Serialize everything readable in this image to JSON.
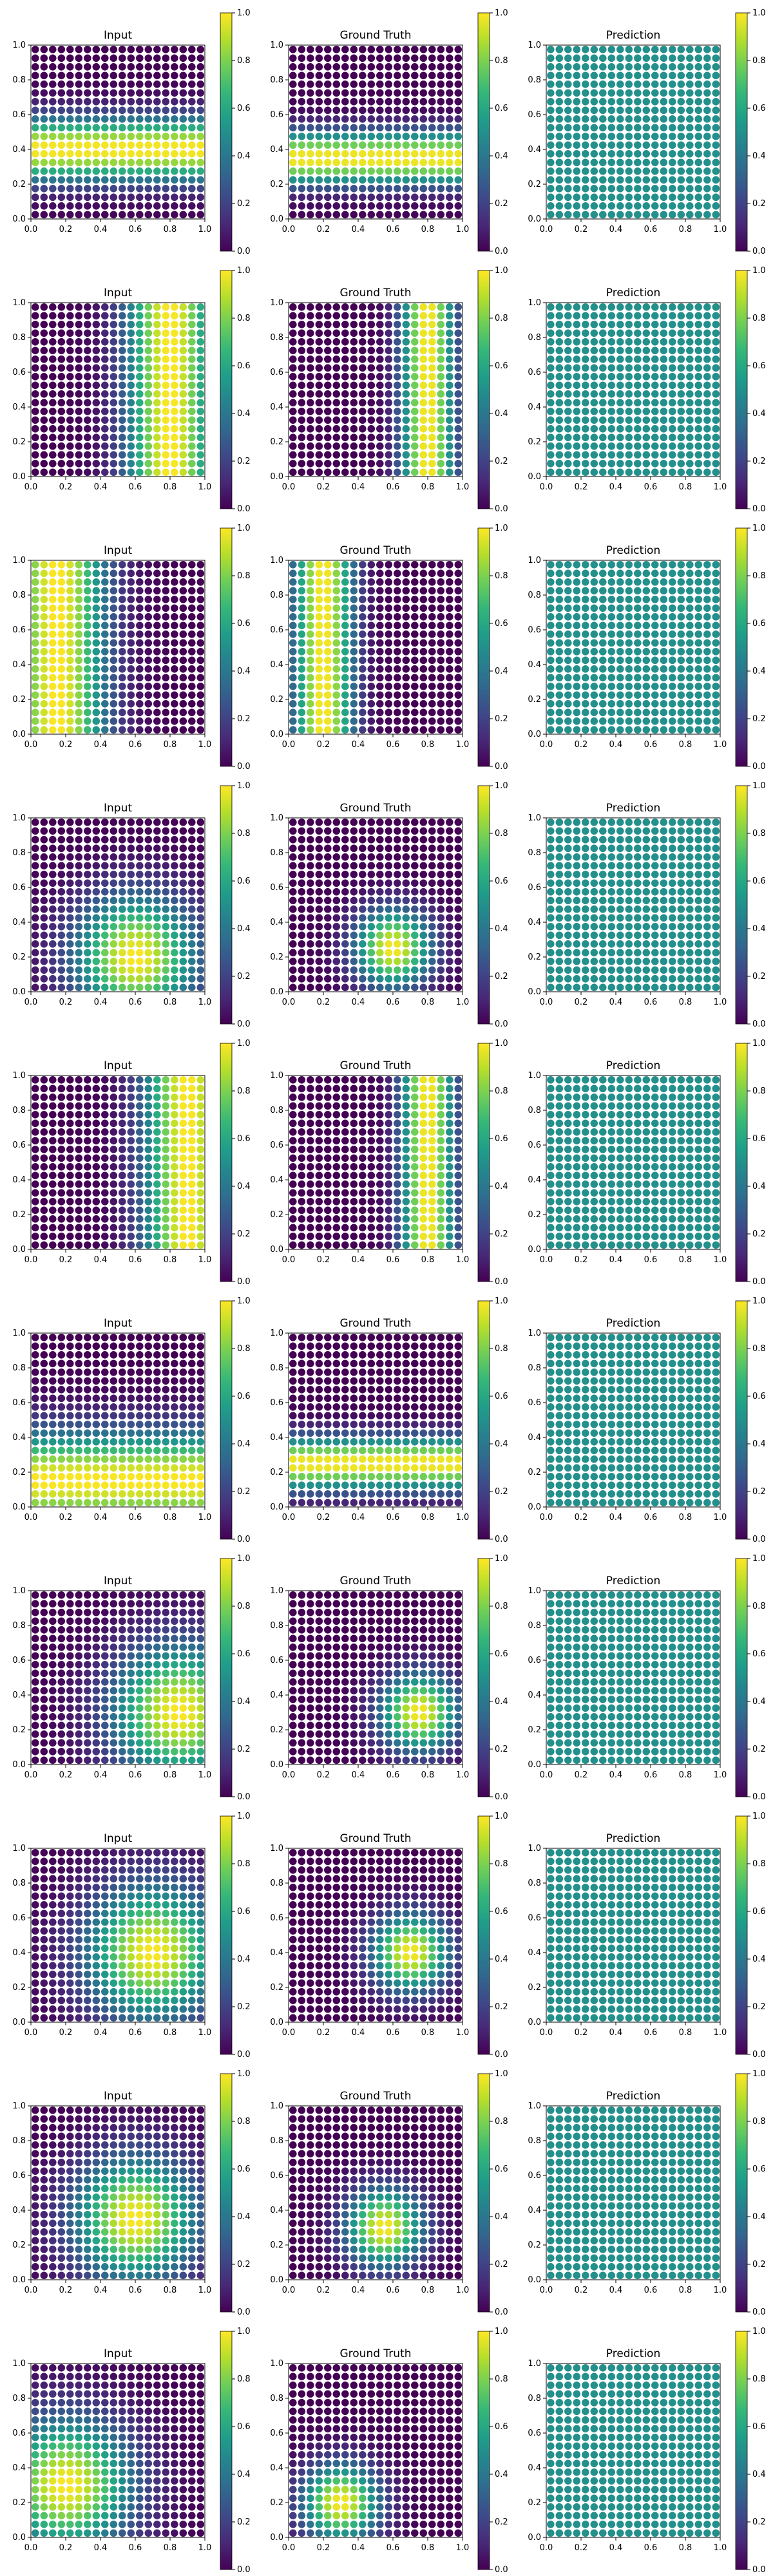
{
  "figure": {
    "colormap": "viridis",
    "colorbar_ticks": [
      "0.0",
      "0.2",
      "0.4",
      "0.6",
      "0.8",
      "1.0"
    ],
    "axis_ticks": [
      "0.0",
      "0.2",
      "0.4",
      "0.6",
      "0.8",
      "1.0"
    ]
  },
  "chart_data": [
    {
      "row": 1,
      "input": {
        "type": "scatter",
        "title": "Input",
        "field": "band-y",
        "center": [
          0.5,
          0.4
        ],
        "width": 0.18
      },
      "ground_truth": {
        "type": "scatter",
        "title": "Ground Truth",
        "field": "band-y",
        "center": [
          0.5,
          0.35
        ],
        "width": 0.15
      },
      "prediction": {
        "type": "scatter",
        "title": "Prediction",
        "field": "constant",
        "value": 0.5
      }
    },
    {
      "row": 2,
      "input": {
        "type": "scatter",
        "title": "Input",
        "field": "band-x",
        "center": [
          0.8,
          0.5
        ],
        "width": 0.25
      },
      "ground_truth": {
        "type": "scatter",
        "title": "Ground Truth",
        "field": "band-x",
        "center": [
          0.8,
          0.3
        ],
        "width": 0.15
      },
      "prediction": {
        "type": "scatter",
        "title": "Prediction",
        "field": "constant",
        "value": 0.5
      }
    },
    {
      "row": 3,
      "input": {
        "type": "scatter",
        "title": "Input",
        "field": "band-x",
        "center": [
          0.15,
          0.5
        ],
        "width": 0.28
      },
      "ground_truth": {
        "type": "scatter",
        "title": "Ground Truth",
        "field": "band-x",
        "center": [
          0.2,
          0.4
        ],
        "width": 0.17
      },
      "prediction": {
        "type": "scatter",
        "title": "Prediction",
        "field": "constant",
        "value": 0.5
      }
    },
    {
      "row": 4,
      "input": {
        "type": "scatter",
        "title": "Input",
        "field": "blob",
        "center": [
          0.6,
          0.2
        ],
        "width": 0.35
      },
      "ground_truth": {
        "type": "scatter",
        "title": "Ground Truth",
        "field": "blob",
        "center": [
          0.6,
          0.25
        ],
        "width": 0.22
      },
      "prediction": {
        "type": "scatter",
        "title": "Prediction",
        "field": "constant",
        "value": 0.5
      }
    },
    {
      "row": 5,
      "input": {
        "type": "scatter",
        "title": "Input",
        "field": "band-x",
        "center": [
          0.9,
          0.5
        ],
        "width": 0.25
      },
      "ground_truth": {
        "type": "scatter",
        "title": "Ground Truth",
        "field": "band-x",
        "center": [
          0.8,
          0.5
        ],
        "width": 0.15
      },
      "prediction": {
        "type": "scatter",
        "title": "Prediction",
        "field": "constant",
        "value": 0.5
      }
    },
    {
      "row": 6,
      "input": {
        "type": "scatter",
        "title": "Input",
        "field": "band-y",
        "center": [
          0.5,
          0.15
        ],
        "width": 0.28
      },
      "ground_truth": {
        "type": "scatter",
        "title": "Ground Truth",
        "field": "band-y",
        "center": [
          0.5,
          0.25
        ],
        "width": 0.15
      },
      "prediction": {
        "type": "scatter",
        "title": "Prediction",
        "field": "constant",
        "value": 0.5
      }
    },
    {
      "row": 7,
      "input": {
        "type": "scatter",
        "title": "Input",
        "field": "blob",
        "center": [
          0.85,
          0.3
        ],
        "width": 0.38
      },
      "ground_truth": {
        "type": "scatter",
        "title": "Ground Truth",
        "field": "blob",
        "center": [
          0.75,
          0.3
        ],
        "width": 0.22
      },
      "prediction": {
        "type": "scatter",
        "title": "Prediction",
        "field": "constant",
        "value": 0.5
      }
    },
    {
      "row": 8,
      "input": {
        "type": "scatter",
        "title": "Input",
        "field": "blob",
        "center": [
          0.7,
          0.4
        ],
        "width": 0.38
      },
      "ground_truth": {
        "type": "scatter",
        "title": "Ground Truth",
        "field": "blob",
        "center": [
          0.7,
          0.4
        ],
        "width": 0.22
      },
      "prediction": {
        "type": "scatter",
        "title": "Prediction",
        "field": "constant",
        "value": 0.5
      }
    },
    {
      "row": 9,
      "input": {
        "type": "scatter",
        "title": "Input",
        "field": "blob",
        "center": [
          0.6,
          0.35
        ],
        "width": 0.35
      },
      "ground_truth": {
        "type": "scatter",
        "title": "Ground Truth",
        "field": "blob",
        "center": [
          0.55,
          0.3
        ],
        "width": 0.22
      },
      "prediction": {
        "type": "scatter",
        "title": "Prediction",
        "field": "constant",
        "value": 0.5
      }
    },
    {
      "row": 10,
      "input": {
        "type": "scatter",
        "title": "Input",
        "field": "blob",
        "center": [
          0.2,
          0.3
        ],
        "width": 0.38
      },
      "ground_truth": {
        "type": "scatter",
        "title": "Ground Truth",
        "field": "blob",
        "center": [
          0.3,
          0.2
        ],
        "width": 0.22
      },
      "prediction": {
        "type": "scatter",
        "title": "Prediction",
        "field": "constant",
        "value": 0.5
      }
    }
  ]
}
